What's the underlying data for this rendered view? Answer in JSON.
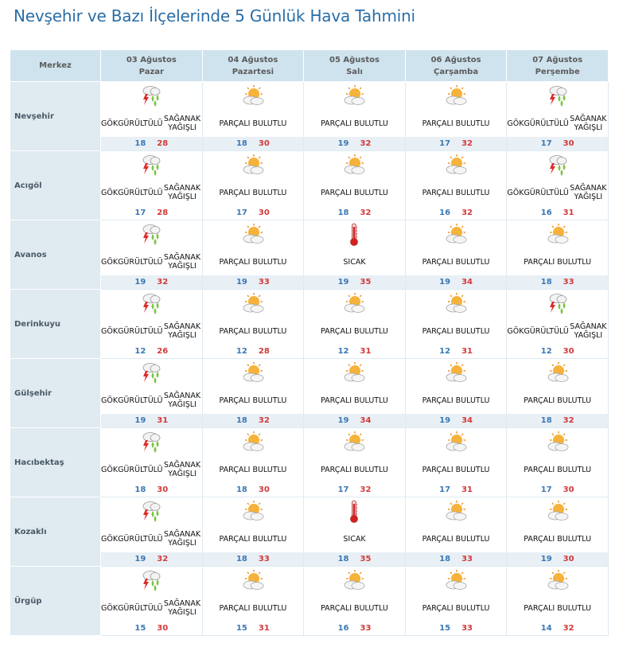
{
  "title": "Nevşehir ve Bazı İlçelerinde 5 Günlük Hava Tahmini",
  "header": {
    "corner": "Merkez",
    "days": [
      {
        "date": "03 Ağustos",
        "weekday": "Pazar"
      },
      {
        "date": "04 Ağustos",
        "weekday": "Pazartesi"
      },
      {
        "date": "05 Ağustos",
        "weekday": "Salı"
      },
      {
        "date": "06 Ağustos",
        "weekday": "Çarşamba"
      },
      {
        "date": "07 Ağustos",
        "weekday": "Perşembe"
      }
    ]
  },
  "conditions": {
    "storm": {
      "line1": "GÖKGÜRÜLTÜLÜ",
      "line2": "SAĞANAK YAĞIŞLI",
      "icon": "thunderstorm-rain-icon"
    },
    "partly": {
      "line1": "PARÇALI BULUTLU",
      "line2": "",
      "icon": "partly-cloudy-icon"
    },
    "hot": {
      "line1": "SICAK",
      "line2": "",
      "icon": "thermometer-hot-icon"
    }
  },
  "colors": {
    "min_temp": "#3b78b4",
    "max_temp": "#d23a3a",
    "title": "#2a6ea6",
    "header_bg": "#cfe3ef"
  },
  "rows": [
    {
      "city": "Nevşehir",
      "days": [
        {
          "cond": "storm",
          "min": "18",
          "max": "28"
        },
        {
          "cond": "partly",
          "min": "18",
          "max": "30"
        },
        {
          "cond": "partly",
          "min": "19",
          "max": "32"
        },
        {
          "cond": "partly",
          "min": "17",
          "max": "32"
        },
        {
          "cond": "storm",
          "min": "17",
          "max": "30"
        }
      ]
    },
    {
      "city": "Acıgöl",
      "days": [
        {
          "cond": "storm",
          "min": "17",
          "max": "28"
        },
        {
          "cond": "partly",
          "min": "17",
          "max": "30"
        },
        {
          "cond": "partly",
          "min": "18",
          "max": "32"
        },
        {
          "cond": "partly",
          "min": "16",
          "max": "32"
        },
        {
          "cond": "storm",
          "min": "16",
          "max": "31"
        }
      ]
    },
    {
      "city": "Avanos",
      "days": [
        {
          "cond": "storm",
          "min": "19",
          "max": "32"
        },
        {
          "cond": "partly",
          "min": "19",
          "max": "33"
        },
        {
          "cond": "hot",
          "min": "19",
          "max": "35"
        },
        {
          "cond": "partly",
          "min": "19",
          "max": "34"
        },
        {
          "cond": "partly",
          "min": "18",
          "max": "33"
        }
      ]
    },
    {
      "city": "Derinkuyu",
      "days": [
        {
          "cond": "storm",
          "min": "12",
          "max": "26"
        },
        {
          "cond": "partly",
          "min": "12",
          "max": "28"
        },
        {
          "cond": "partly",
          "min": "12",
          "max": "31"
        },
        {
          "cond": "partly",
          "min": "12",
          "max": "31"
        },
        {
          "cond": "storm",
          "min": "12",
          "max": "30"
        }
      ]
    },
    {
      "city": "Gülşehir",
      "days": [
        {
          "cond": "storm",
          "min": "19",
          "max": "31"
        },
        {
          "cond": "partly",
          "min": "18",
          "max": "32"
        },
        {
          "cond": "partly",
          "min": "19",
          "max": "34"
        },
        {
          "cond": "partly",
          "min": "19",
          "max": "34"
        },
        {
          "cond": "partly",
          "min": "18",
          "max": "32"
        }
      ]
    },
    {
      "city": "Hacıbektaş",
      "days": [
        {
          "cond": "storm",
          "min": "18",
          "max": "30"
        },
        {
          "cond": "partly",
          "min": "18",
          "max": "30"
        },
        {
          "cond": "partly",
          "min": "17",
          "max": "32"
        },
        {
          "cond": "partly",
          "min": "17",
          "max": "31"
        },
        {
          "cond": "partly",
          "min": "17",
          "max": "30"
        }
      ]
    },
    {
      "city": "Kozaklı",
      "days": [
        {
          "cond": "storm",
          "min": "19",
          "max": "32"
        },
        {
          "cond": "partly",
          "min": "18",
          "max": "33"
        },
        {
          "cond": "hot",
          "min": "18",
          "max": "35"
        },
        {
          "cond": "partly",
          "min": "18",
          "max": "33"
        },
        {
          "cond": "partly",
          "min": "19",
          "max": "30"
        }
      ]
    },
    {
      "city": "Ürgüp",
      "days": [
        {
          "cond": "storm",
          "min": "15",
          "max": "30"
        },
        {
          "cond": "partly",
          "min": "15",
          "max": "31"
        },
        {
          "cond": "partly",
          "min": "16",
          "max": "33"
        },
        {
          "cond": "partly",
          "min": "15",
          "max": "33"
        },
        {
          "cond": "partly",
          "min": "14",
          "max": "32"
        }
      ]
    }
  ]
}
